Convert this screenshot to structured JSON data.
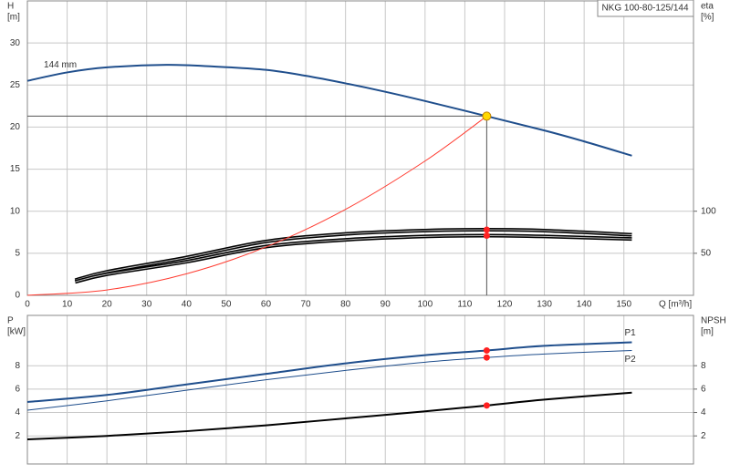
{
  "chart_data": [
    {
      "type": "line",
      "title": "NKG 100-80-125/144",
      "x_label": "Q [m³/h]",
      "y_label": "H",
      "y_unit": "[m]",
      "y2_label": "eta",
      "y2_unit": "[%]",
      "xlim": [
        0,
        167.5
      ],
      "xticks": [
        0,
        10,
        20,
        30,
        40,
        50,
        60,
        70,
        80,
        90,
        100,
        110,
        120,
        130,
        140,
        150
      ],
      "ylim": [
        0,
        35
      ],
      "yticks": [
        0,
        5,
        10,
        15,
        20,
        25,
        30
      ],
      "y2lim": [
        0,
        350
      ],
      "y2ticks": [
        50,
        100
      ],
      "grid": true,
      "duty_point": {
        "x": 115.5,
        "y": 21.3,
        "color": "#ffd800"
      },
      "series": [
        {
          "name": "144 mm",
          "color": "#1f4e8c",
          "x": [
            0,
            10,
            20,
            35,
            47,
            60,
            70,
            80,
            90,
            100,
            115.5,
            130,
            140,
            152
          ],
          "values": [
            25.5,
            26.5,
            27.1,
            27.4,
            27.2,
            26.8,
            26.1,
            25.2,
            24.2,
            23.1,
            21.3,
            19.6,
            18.3,
            16.6
          ]
        },
        {
          "color": "#000000",
          "axis": "y2",
          "x": [
            12,
            20,
            40,
            60,
            80,
            100,
            115.5,
            130,
            152
          ],
          "values": [
            18,
            28,
            45,
            64,
            73,
            77,
            78,
            77,
            72
          ]
        },
        {
          "color": "#000000",
          "axis": "y2",
          "x": [
            12,
            20,
            40,
            60,
            80,
            100,
            115.5,
            130,
            152
          ],
          "values": [
            16,
            25,
            40,
            58,
            66,
            70,
            71,
            70,
            67
          ]
        },
        {
          "color": "#ff3b30",
          "x": [
            0,
            20,
            40,
            60,
            80,
            100,
            115.5
          ],
          "values": [
            0,
            0.64,
            2.56,
            5.75,
            10.22,
            15.97,
            21.3
          ]
        }
      ]
    },
    {
      "type": "line",
      "y_label": "P",
      "y_unit": "[kW]",
      "y2_label": "NPSH",
      "y2_unit": "[m]",
      "xlim": [
        0,
        167.5
      ],
      "xticks": [
        0,
        10,
        20,
        30,
        40,
        50,
        60,
        70,
        80,
        90,
        100,
        110,
        120,
        130,
        140,
        150
      ],
      "ylim": [
        -0.4,
        12.3
      ],
      "yticks": [
        2,
        4,
        6,
        8
      ],
      "y2lim": [
        -0.4,
        12.3
      ],
      "y2ticks": [
        2,
        4,
        6,
        8
      ],
      "grid": true,
      "marker_x": 115.5,
      "series": [
        {
          "name": "P1",
          "color": "#1f4e8c",
          "x": [
            0,
            20,
            40,
            60,
            80,
            100,
            115.5,
            130,
            152
          ],
          "values": [
            4.9,
            5.5,
            6.4,
            7.3,
            8.2,
            8.9,
            9.3,
            9.7,
            10.0
          ]
        },
        {
          "name": "P2",
          "color": "#1f4e8c",
          "x": [
            0,
            20,
            40,
            60,
            80,
            100,
            115.5,
            130,
            152
          ],
          "values": [
            4.2,
            5.0,
            5.9,
            6.8,
            7.6,
            8.3,
            8.7,
            9.0,
            9.3
          ]
        },
        {
          "color": "#000000",
          "axis": "y2",
          "x": [
            0,
            20,
            40,
            60,
            80,
            100,
            115.5,
            130,
            152
          ],
          "values": [
            1.7,
            2.0,
            2.4,
            2.9,
            3.5,
            4.1,
            4.6,
            5.1,
            5.7
          ]
        }
      ]
    }
  ]
}
